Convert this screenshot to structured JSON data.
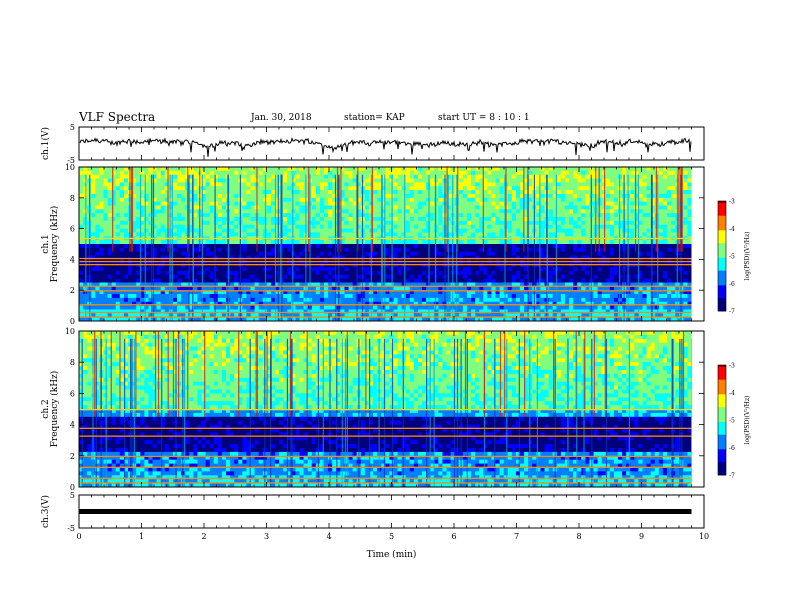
{
  "header": {
    "title": "VLF Spectra",
    "date": "Jan. 30, 2018",
    "station": "station= KAP",
    "start_ut": "start UT =  8 : 10 : 1"
  },
  "chart_data": [
    {
      "type": "line",
      "panel": "ch1-waveform",
      "ylabel": "ch.1(V)",
      "ylim": [
        -5,
        5
      ],
      "yticks": [
        "5",
        "-5"
      ],
      "xlim": [
        0,
        10
      ],
      "series": [
        {
          "values_note": "",
          "x": [
            0,
            9.8
          ]
        }
      ]
    },
    {
      "type": "heatmap",
      "panel": "ch1-spectrogram",
      "ylabel": "ch.1\nFrequency (kHz)",
      "ylim": [
        0,
        10
      ],
      "yticks": [
        "0",
        "2",
        "4",
        "6",
        "8",
        "10"
      ],
      "xlim": [
        0,
        10
      ],
      "colorbar": {
        "label": "log(PSD)(V²/Hz)",
        "range": [
          -7,
          -3
        ],
        "ticks": [
          "-3",
          "-4",
          "-5",
          "-6",
          "-7"
        ]
      }
    },
    {
      "type": "heatmap",
      "panel": "ch2-spectrogram",
      "ylabel": "ch.2\nFrequency (kHz)",
      "ylim": [
        0,
        10
      ],
      "yticks": [
        "0",
        "2",
        "4",
        "6",
        "8",
        "10"
      ],
      "xlim": [
        0,
        10
      ],
      "colorbar": {
        "label": "log(PSD)(V²/Hz)",
        "range": [
          -7,
          -3
        ],
        "ticks": [
          "-3",
          "-4",
          "-5",
          "-6",
          "-7"
        ]
      }
    },
    {
      "type": "line",
      "panel": "ch3-waveform",
      "ylabel": "ch.3(V)",
      "ylim": [
        -5,
        5
      ],
      "yticks": [
        "5",
        "-5"
      ],
      "xlim": [
        0,
        10
      ],
      "xlabel": "Time (min)",
      "xticks": [
        "0",
        "1",
        "2",
        "3",
        "4",
        "5",
        "6",
        "7",
        "8",
        "9",
        "10"
      ],
      "series": [
        {
          "x": [
            0,
            9.8
          ],
          "y": [
            0,
            0
          ]
        }
      ]
    }
  ],
  "colors": {
    "jet": [
      "#00007f",
      "#0000ff",
      "#007fff",
      "#00ffff",
      "#7fff7f",
      "#ffff00",
      "#ff7f00",
      "#ff0000",
      "#7f0000"
    ]
  }
}
